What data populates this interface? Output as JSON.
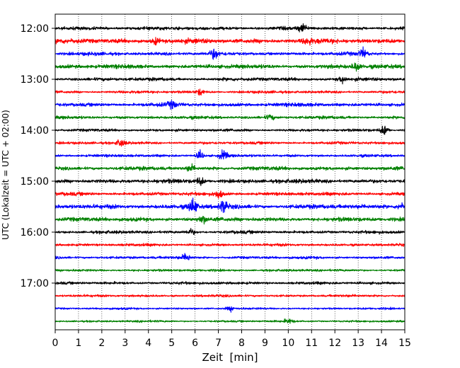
{
  "chart_data": {
    "type": "line",
    "title": "",
    "xlabel": "Zeit  [min]",
    "ylabel": "UTC (Lokalzeit = UTC + 02:00)",
    "xlim": [
      0,
      15
    ],
    "x_ticks": [
      0,
      1,
      2,
      3,
      4,
      5,
      6,
      7,
      8,
      9,
      10,
      11,
      12,
      13,
      14,
      15
    ],
    "y_ticks": [
      "12:00",
      "13:00",
      "14:00",
      "15:00",
      "16:00",
      "17:00"
    ],
    "grid": "vertical dotted lines at each minute",
    "trace_interval_minutes": 15,
    "colors": [
      "#000000",
      "#ff0000",
      "#0000ff",
      "#008000"
    ],
    "traces": [
      {
        "start": "12:00",
        "color": "#000000",
        "amplitude": 1.0,
        "events": [
          {
            "minute": 10.6,
            "amplitude": 2.6
          }
        ]
      },
      {
        "start": "12:15",
        "color": "#ff0000",
        "amplitude": 1.4,
        "events": [
          {
            "minute": 4.3,
            "amplitude": 1.8
          },
          {
            "minute": 10.8,
            "amplitude": 1.8
          }
        ]
      },
      {
        "start": "12:30",
        "color": "#0000ff",
        "amplitude": 1.0,
        "events": [
          {
            "minute": 6.8,
            "amplitude": 3.0
          },
          {
            "minute": 13.2,
            "amplitude": 2.8
          }
        ]
      },
      {
        "start": "12:45",
        "color": "#008000",
        "amplitude": 1.2,
        "events": [
          {
            "minute": 12.9,
            "amplitude": 2.5
          }
        ]
      },
      {
        "start": "13:00",
        "color": "#000000",
        "amplitude": 1.0,
        "events": [
          {
            "minute": 12.3,
            "amplitude": 2.0
          }
        ]
      },
      {
        "start": "13:15",
        "color": "#ff0000",
        "amplitude": 0.8,
        "events": [
          {
            "minute": 6.2,
            "amplitude": 1.8
          }
        ]
      },
      {
        "start": "13:30",
        "color": "#0000ff",
        "amplitude": 1.1,
        "events": [
          {
            "minute": 5.0,
            "amplitude": 2.0
          }
        ]
      },
      {
        "start": "13:45",
        "color": "#008000",
        "amplitude": 0.9,
        "events": [
          {
            "minute": 9.2,
            "amplitude": 1.5
          }
        ]
      },
      {
        "start": "14:00",
        "color": "#000000",
        "amplitude": 0.8,
        "events": [
          {
            "minute": 14.1,
            "amplitude": 3.0
          }
        ]
      },
      {
        "start": "14:15",
        "color": "#ff0000",
        "amplitude": 0.8,
        "events": [
          {
            "minute": 2.8,
            "amplitude": 2.2
          }
        ]
      },
      {
        "start": "14:30",
        "color": "#0000ff",
        "amplitude": 0.8,
        "events": [
          {
            "minute": 6.2,
            "amplitude": 2.5
          },
          {
            "minute": 7.2,
            "amplitude": 3.2
          }
        ]
      },
      {
        "start": "14:45",
        "color": "#008000",
        "amplitude": 1.1,
        "events": [
          {
            "minute": 5.8,
            "amplitude": 2.0
          }
        ]
      },
      {
        "start": "15:00",
        "color": "#000000",
        "amplitude": 1.2,
        "events": [
          {
            "minute": 6.2,
            "amplitude": 2.3
          }
        ]
      },
      {
        "start": "15:15",
        "color": "#ff0000",
        "amplitude": 1.0,
        "events": [
          {
            "minute": 7.0,
            "amplitude": 2.5
          }
        ]
      },
      {
        "start": "15:30",
        "color": "#0000ff",
        "amplitude": 1.3,
        "events": [
          {
            "minute": 5.9,
            "amplitude": 5.0
          },
          {
            "minute": 7.2,
            "amplitude": 4.0
          },
          {
            "minute": 14.8,
            "amplitude": 2.0
          }
        ]
      },
      {
        "start": "15:45",
        "color": "#008000",
        "amplitude": 1.2,
        "events": [
          {
            "minute": 6.3,
            "amplitude": 2.0
          }
        ]
      },
      {
        "start": "16:00",
        "color": "#000000",
        "amplitude": 0.9,
        "events": [
          {
            "minute": 5.8,
            "amplitude": 1.8
          }
        ]
      },
      {
        "start": "16:15",
        "color": "#ff0000",
        "amplitude": 0.8,
        "events": []
      },
      {
        "start": "16:30",
        "color": "#0000ff",
        "amplitude": 0.8,
        "events": [
          {
            "minute": 5.6,
            "amplitude": 2.5
          }
        ]
      },
      {
        "start": "16:45",
        "color": "#008000",
        "amplitude": 0.7,
        "events": []
      },
      {
        "start": "17:00",
        "color": "#000000",
        "amplitude": 0.8,
        "events": []
      },
      {
        "start": "17:15",
        "color": "#ff0000",
        "amplitude": 0.7,
        "events": []
      },
      {
        "start": "17:30",
        "color": "#0000ff",
        "amplitude": 0.6,
        "events": [
          {
            "minute": 7.5,
            "amplitude": 1.3
          }
        ]
      },
      {
        "start": "17:45",
        "color": "#008000",
        "amplitude": 0.6,
        "events": [
          {
            "minute": 10.0,
            "amplitude": 1.5
          }
        ]
      }
    ]
  }
}
